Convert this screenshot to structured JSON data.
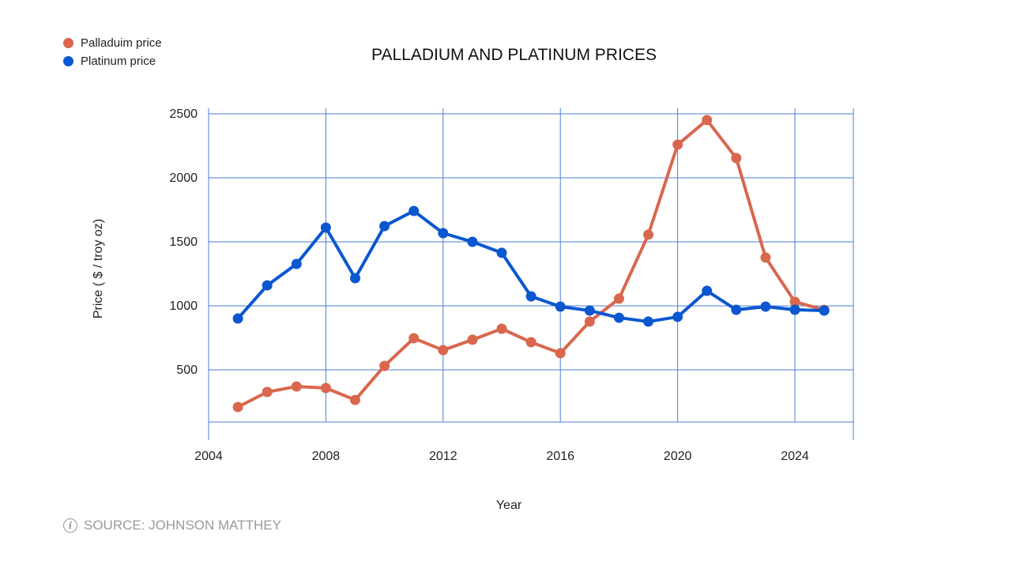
{
  "chart_data": {
    "type": "line",
    "title": "PALLADIUM AND PLATINUM PRICES",
    "xlabel": "Year",
    "ylabel": "Price ( $ / troy oz)",
    "x": [
      2005,
      2006,
      2007,
      2008,
      2009,
      2010,
      2011,
      2012,
      2013,
      2014,
      2015,
      2016,
      2017,
      2018,
      2019,
      2020,
      2021,
      2022,
      2023,
      2024,
      2025
    ],
    "series": [
      {
        "name": "Palladuim price",
        "color": "#d9674e",
        "values": [
          210,
          327,
          370,
          358,
          265,
          531,
          747,
          654,
          735,
          821,
          716,
          630,
          877,
          1056,
          1556,
          2259,
          2451,
          2154,
          1377,
          1031,
          969
        ]
      },
      {
        "name": "Platinum price",
        "color": "#0b57d0",
        "values": [
          901,
          1160,
          1327,
          1611,
          1216,
          1623,
          1741,
          1568,
          1500,
          1414,
          1074,
          994,
          963,
          907,
          877,
          914,
          1117,
          969,
          994,
          969,
          963
        ]
      }
    ],
    "xticks": [
      "2004",
      "2008",
      "2012",
      "2016",
      "2020",
      "2024"
    ],
    "yticks": [
      "500",
      "1000",
      "1500",
      "2000",
      "2500"
    ],
    "xlim": [
      2004,
      2026
    ],
    "ylim": [
      90,
      2550
    ],
    "grid": true,
    "grid_color": "#4a7fd6",
    "legend_position": "top-left"
  },
  "source": "SOURCE: JOHNSON MATTHEY",
  "source_icon": "info-icon"
}
